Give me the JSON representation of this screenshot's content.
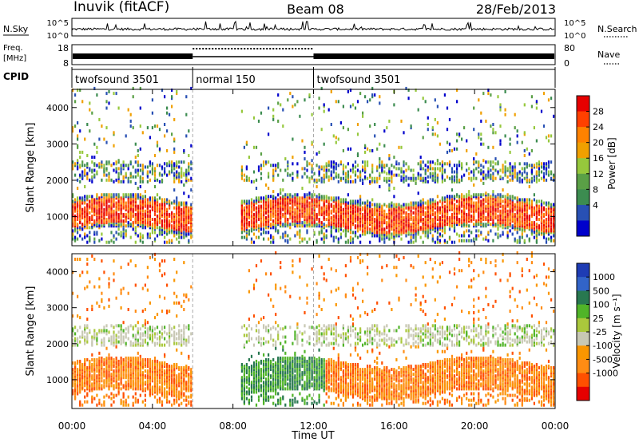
{
  "header": {
    "station": "Inuvik (fitACF)",
    "beam": "Beam 08",
    "date": "28/Feb/2013"
  },
  "noise_panel": {
    "left_label": "N.Sky",
    "right_label": "N.Search",
    "left_ticks": [
      "10^5",
      "10^0"
    ],
    "right_ticks": [
      "10^5",
      "10^0"
    ]
  },
  "freq_panel": {
    "left_label_line1": "Freq.",
    "left_label_line2": "[MHz]",
    "right_label": "Nave",
    "left_ticks": [
      "18",
      "8"
    ],
    "right_ticks": [
      "80",
      "0"
    ]
  },
  "cpid": {
    "label": "CPID",
    "segments": [
      {
        "name": "twofsound 3501",
        "start_hour": 0,
        "end_hour": 6
      },
      {
        "name": "normal 150",
        "start_hour": 6,
        "end_hour": 12
      },
      {
        "name": "twofsound 3501",
        "start_hour": 12,
        "end_hour": 24
      }
    ]
  },
  "colors": {
    "power": [
      "#0000cc",
      "#2850b4",
      "#3c8c50",
      "#5aa046",
      "#96c83c",
      "#f0a000",
      "#ff8200",
      "#ff4000",
      "#e60000"
    ],
    "velocity": [
      "#1e3cb4",
      "#3264c8",
      "#287850",
      "#50b428",
      "#aac83c",
      "#c8c8b4",
      "#fa9600",
      "#ff8c14",
      "#ff5000",
      "#e60000"
    ]
  },
  "chart_data": [
    {
      "type": "heatmap",
      "panel": "power",
      "ylabel": "Slant Range [km]",
      "yticks": [
        "1000",
        "2000",
        "3000",
        "4000"
      ],
      "ylim": [
        200,
        4500
      ],
      "colorbar_label": "Power [dB]",
      "colorbar_ticks": [
        "4",
        "8",
        "12",
        "16",
        "20",
        "24",
        "28"
      ]
    },
    {
      "type": "heatmap",
      "panel": "velocity",
      "ylabel": "Slant Range [km]",
      "yticks": [
        "1000",
        "2000",
        "3000",
        "4000"
      ],
      "ylim": [
        200,
        4500
      ],
      "colorbar_label": "Velocity [m s⁻¹]",
      "colorbar_ticks": [
        "1000",
        "500",
        "100",
        "25",
        "-25",
        "-100",
        "-500",
        "-1000"
      ],
      "xlabel": "Time UT",
      "xticks": [
        "00:00",
        "04:00",
        "08:00",
        "12:00",
        "16:00",
        "20:00",
        "00:00"
      ],
      "xlim": [
        0,
        24
      ]
    }
  ]
}
